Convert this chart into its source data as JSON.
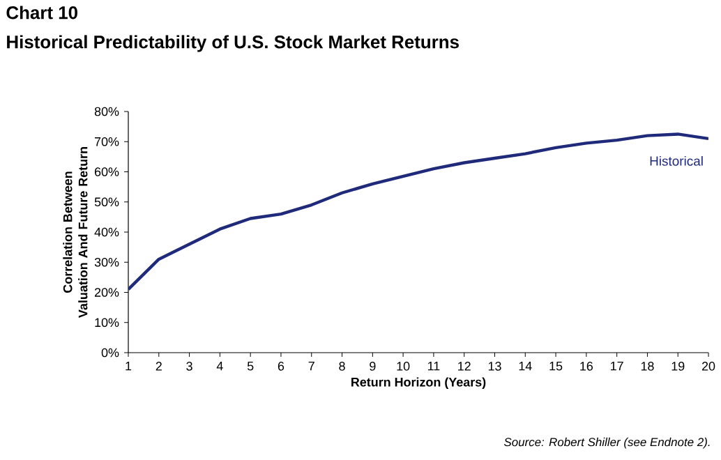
{
  "chart_data": {
    "type": "line",
    "title": "Chart 10",
    "subtitle": "Historical Predictability of U.S. Stock Market Returns",
    "xlabel": "Return Horizon (Years)",
    "ylabel": "Correlation Between Valuation And Future Return",
    "x": [
      1,
      2,
      3,
      4,
      5,
      6,
      7,
      8,
      9,
      10,
      11,
      12,
      13,
      14,
      15,
      16,
      17,
      18,
      19,
      20
    ],
    "series": [
      {
        "name": "Historical",
        "color": "#1f2a7a",
        "values": [
          21,
          31,
          36,
          41,
          44.5,
          46,
          49,
          53,
          56,
          58.5,
          61,
          63,
          64.5,
          66,
          68,
          69.5,
          70.5,
          72,
          72.5,
          71
        ]
      }
    ],
    "xlim": [
      1,
      20
    ],
    "xticks": [
      1,
      2,
      3,
      4,
      5,
      6,
      7,
      8,
      9,
      10,
      11,
      12,
      13,
      14,
      15,
      16,
      17,
      18,
      19,
      20
    ],
    "ylim": [
      0,
      80
    ],
    "yticks": [
      {
        "value": 0,
        "label": "0%"
      },
      {
        "value": 10,
        "label": "10%"
      },
      {
        "value": 20,
        "label": "20%"
      },
      {
        "value": 30,
        "label": "30%"
      },
      {
        "value": 40,
        "label": "40%"
      },
      {
        "value": 50,
        "label": "50%"
      },
      {
        "value": 60,
        "label": "60%"
      },
      {
        "value": 70,
        "label": "70%"
      },
      {
        "value": 80,
        "label": "80%"
      }
    ],
    "annotations": [
      "Source: Robert Shiller (see Endnote 2)."
    ]
  }
}
